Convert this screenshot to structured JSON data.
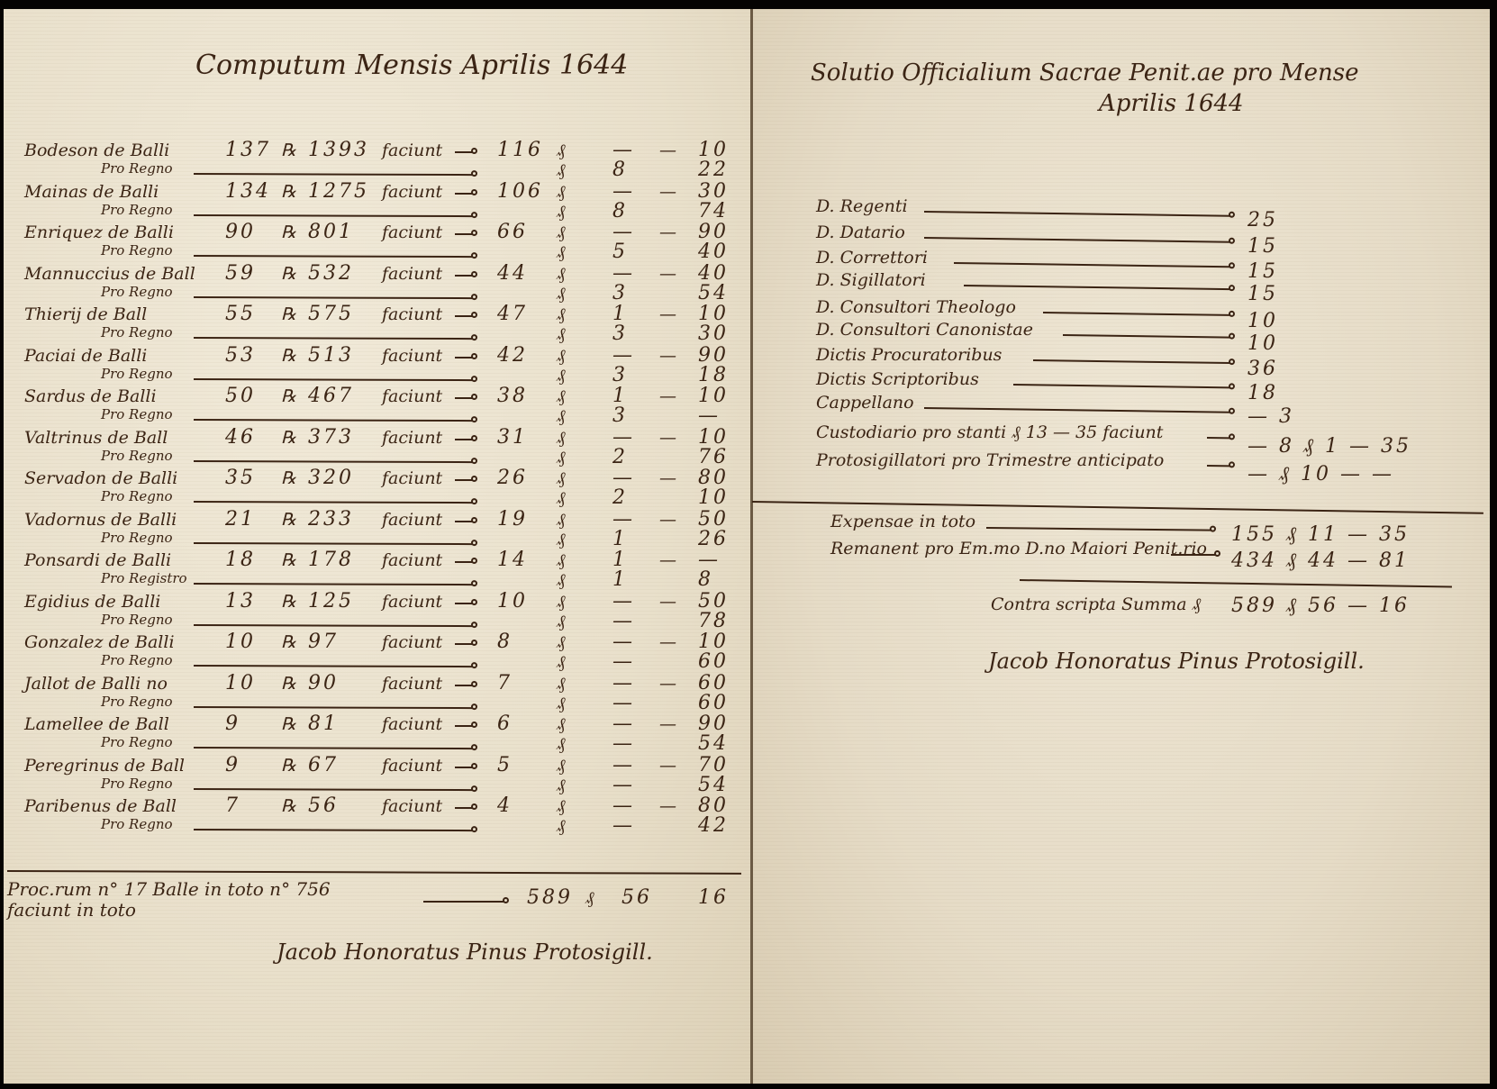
{
  "left_page": {
    "title": "Computum Mensis Aprilis 1644",
    "entries": [
      {
        "name": "Bodeson de Balli",
        "count": "137",
        "unit": "℞",
        "total": "1393",
        "faciunt": "faciunt",
        "scudi": "116",
        "mid": "—",
        "last": "10",
        "sub_label": "Pro Regno",
        "sub_mid": "8",
        "sub_last": "22"
      },
      {
        "name": "Mainas de Balli",
        "count": "134",
        "unit": "℞",
        "total": "1275",
        "faciunt": "faciunt",
        "scudi": "106",
        "mid": "—",
        "last": "30",
        "sub_label": "Pro Regno",
        "sub_mid": "8",
        "sub_last": "74"
      },
      {
        "name": "Enriquez de Balli",
        "count": "90",
        "unit": "℞",
        "total": "801",
        "faciunt": "faciunt",
        "scudi": "66",
        "mid": "—",
        "last": "90",
        "sub_label": "Pro Regno",
        "sub_mid": "5",
        "sub_last": "40"
      },
      {
        "name": "Mannuccius de Ball",
        "count": "59",
        "unit": "℞",
        "total": "532",
        "faciunt": "faciunt",
        "scudi": "44",
        "mid": "—",
        "last": "40",
        "sub_label": "Pro Regno",
        "sub_mid": "3",
        "sub_last": "54"
      },
      {
        "name": "Thierij de Ball",
        "count": "55",
        "unit": "℞",
        "total": "575",
        "faciunt": "faciunt",
        "scudi": "47",
        "mid": "1",
        "last": "10",
        "sub_label": "Pro Regno",
        "sub_mid": "3",
        "sub_last": "30"
      },
      {
        "name": "Paciai de Balli",
        "count": "53",
        "unit": "℞",
        "total": "513",
        "faciunt": "faciunt",
        "scudi": "42",
        "mid": "—",
        "last": "90",
        "sub_label": "Pro Regno",
        "sub_mid": "3",
        "sub_last": "18"
      },
      {
        "name": "Sardus de Balli",
        "count": "50",
        "unit": "℞",
        "total": "467",
        "faciunt": "faciunt",
        "scudi": "38",
        "mid": "1",
        "last": "10",
        "sub_label": "Pro Regno",
        "sub_mid": "3",
        "sub_last": "—"
      },
      {
        "name": "Valtrinus de Ball",
        "count": "46",
        "unit": "℞",
        "total": "373",
        "faciunt": "faciunt",
        "scudi": "31",
        "mid": "—",
        "last": "10",
        "sub_label": "Pro Regno",
        "sub_mid": "2",
        "sub_last": "76"
      },
      {
        "name": "Servadon de Balli",
        "count": "35",
        "unit": "℞",
        "total": "320",
        "faciunt": "faciunt",
        "scudi": "26",
        "mid": "—",
        "last": "80",
        "sub_label": "Pro Regno",
        "sub_mid": "2",
        "sub_last": "10"
      },
      {
        "name": "Vadornus de Balli",
        "count": "21",
        "unit": "℞",
        "total": "233",
        "faciunt": "faciunt",
        "scudi": "19",
        "mid": "—",
        "last": "50",
        "sub_label": "Pro Regno",
        "sub_mid": "1",
        "sub_last": "26"
      },
      {
        "name": "Ponsardi de Balli",
        "count": "18",
        "unit": "℞",
        "total": "178",
        "faciunt": "faciunt",
        "scudi": "14",
        "mid": "1",
        "last": "—",
        "sub_label": "Pro Registro",
        "sub_mid": "1",
        "sub_last": "8"
      },
      {
        "name": "Egidius de Balli",
        "count": "13",
        "unit": "℞",
        "total": "125",
        "faciunt": "faciunt",
        "scudi": "10",
        "mid": "—",
        "last": "50",
        "sub_label": "Pro Regno",
        "sub_mid": "—",
        "sub_last": "78"
      },
      {
        "name": "Gonzalez de Balli",
        "count": "10",
        "unit": "℞",
        "total": "97",
        "faciunt": "faciunt",
        "scudi": "8",
        "mid": "—",
        "last": "10",
        "sub_label": "Pro Regno",
        "sub_mid": "—",
        "sub_last": "60"
      },
      {
        "name": "Jallot de Balli no",
        "count": "10",
        "unit": "℞",
        "total": "90",
        "faciunt": "faciunt",
        "scudi": "7",
        "mid": "—",
        "last": "60",
        "sub_label": "Pro Regno",
        "sub_mid": "—",
        "sub_last": "60"
      },
      {
        "name": "Lamellee de Ball",
        "count": "9",
        "unit": "℞",
        "total": "81",
        "faciunt": "faciunt",
        "scudi": "6",
        "mid": "—",
        "last": "90",
        "sub_label": "Pro Regno",
        "sub_mid": "—",
        "sub_last": "54"
      },
      {
        "name": "Peregrinus de Ball",
        "count": "9",
        "unit": "℞",
        "total": "67",
        "faciunt": "faciunt",
        "scudi": "5",
        "mid": "—",
        "last": "70",
        "sub_label": "Pro Regno",
        "sub_mid": "—",
        "sub_last": "54"
      },
      {
        "name": "Paribenus de Ball",
        "count": "7",
        "unit": "℞",
        "total": "56",
        "faciunt": "faciunt",
        "scudi": "4",
        "mid": "—",
        "last": "80",
        "sub_label": "Pro Regno",
        "sub_mid": "—",
        "sub_last": "42"
      }
    ],
    "currency_symbol": "₰",
    "total_row": {
      "label": "Proc.rum n° 17 Balle in toto n° 756 faciunt in toto",
      "scudi": "589",
      "mid": "56",
      "last": "16"
    },
    "signature": "Jacob Honoratus Pinus Protosigill."
  },
  "right_page": {
    "title_line1": "Solutio Officialium Sacrae Penit.ae pro Mense",
    "title_line2": "Aprilis 1644",
    "items": [
      {
        "label": "D. Regenti",
        "value": "25"
      },
      {
        "label": "D. Datario",
        "value": "15"
      },
      {
        "label": "D. Correttori",
        "value": "15"
      },
      {
        "label": "D. Sigillatori",
        "value": "15"
      },
      {
        "label": "D. Consultori Theologo",
        "value": "10"
      },
      {
        "label": "D. Consultori Canonistae",
        "value": "10"
      },
      {
        "label": "Dictis Procuratoribus",
        "value": "36"
      },
      {
        "label": "Dictis Scriptoribus",
        "value": "18"
      },
      {
        "label": "Cappellano",
        "value": "— 3"
      },
      {
        "label": "Custodiario pro stanti ₰ 13 — 35 faciunt",
        "value": "— 8 ₰ 1 — 35"
      },
      {
        "label": "Protosigillatori pro Trimestre anticipato",
        "value": "— ₰ 10 — —"
      }
    ],
    "expense": {
      "label": "Expensae in toto",
      "value": "155 ₰ 11 — 35"
    },
    "remainder": {
      "label": "Remanent pro Em.mo D.no Maiori Penit.rio",
      "value": "434 ₰ 44 — 81"
    },
    "sum": {
      "label": "Contra scripta Summa ₰",
      "value": "589 ₰ 56 — 16"
    },
    "signature": "Jacob Honoratus Pinus Protosigill."
  },
  "colors": {
    "ink": "#3b2414",
    "paper": "#ece4d2",
    "background": "#050302"
  }
}
